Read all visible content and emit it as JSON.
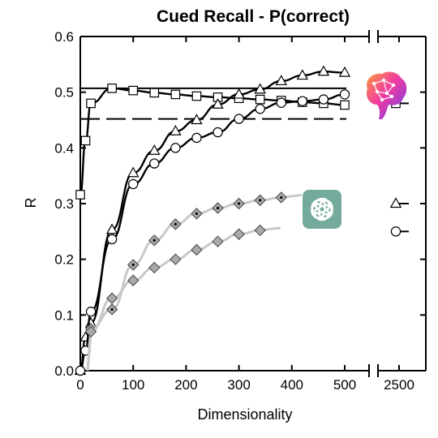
{
  "chart_data": {
    "type": "line",
    "title": "Cued Recall - P(correct)",
    "xlabel": "Dimensionality",
    "ylabel": "R",
    "xlim": [
      0,
      550
    ],
    "ylim": [
      0,
      0.6
    ],
    "x_break": true,
    "x_ticks": [
      "0",
      "100",
      "200",
      "300",
      "400",
      "500",
      "2500"
    ],
    "y_ticks": [
      "0.0",
      "0.1",
      "0.2",
      "0.3",
      "0.4",
      "0.5",
      "0.6"
    ],
    "grid": false,
    "legend": "none",
    "icons": [
      "brain-icon",
      "chatgpt-logo-icon"
    ],
    "reference_lines": [
      {
        "style": "solid",
        "y": 0.507
      },
      {
        "style": "dashed",
        "y": 0.452
      }
    ],
    "series": [
      {
        "marker": "square",
        "color": "#000000",
        "x": [
          0,
          10,
          20,
          60,
          100,
          140,
          180,
          220,
          260,
          300,
          340,
          380,
          420,
          460,
          500
        ],
        "y": [
          0.316,
          0.413,
          0.48,
          0.507,
          0.503,
          0.499,
          0.496,
          0.493,
          0.491,
          0.489,
          0.487,
          0.485,
          0.482,
          0.48,
          0.477
        ],
        "value_at_2500": 0.48
      },
      {
        "marker": "triangle",
        "color": "#000000",
        "x": [
          0,
          10,
          20,
          60,
          100,
          140,
          180,
          220,
          260,
          300,
          340,
          380,
          420,
          460,
          500
        ],
        "y": [
          0.0,
          0.06,
          0.085,
          0.253,
          0.355,
          0.395,
          0.43,
          0.45,
          0.478,
          0.496,
          0.505,
          0.52,
          0.53,
          0.537,
          0.535
        ],
        "value_at_2500": 0.3
      },
      {
        "marker": "circle",
        "color": "#000000",
        "x": [
          0,
          10,
          20,
          60,
          100,
          140,
          180,
          220,
          260,
          300,
          340,
          380,
          420,
          460,
          500
        ],
        "y": [
          0.0,
          0.036,
          0.106,
          0.236,
          0.335,
          0.372,
          0.4,
          0.418,
          0.428,
          0.452,
          0.47,
          0.481,
          0.484,
          0.487,
          0.496
        ],
        "value_at_2500": 0.25
      },
      {
        "marker": "diamond-dot",
        "color": "#aaaaaa",
        "x": [
          20,
          60,
          100,
          140,
          180,
          220,
          260,
          300,
          340,
          380
        ],
        "y": [
          0.075,
          0.11,
          0.19,
          0.234,
          0.263,
          0.282,
          0.292,
          0.3,
          0.306,
          0.311
        ]
      },
      {
        "marker": "diamond",
        "color": "#aaaaaa",
        "x": [
          20,
          60,
          100,
          140,
          180,
          220,
          260,
          300,
          340
        ],
        "y": [
          0.07,
          0.13,
          0.162,
          0.185,
          0.2,
          0.217,
          0.232,
          0.245,
          0.252
        ]
      }
    ]
  }
}
